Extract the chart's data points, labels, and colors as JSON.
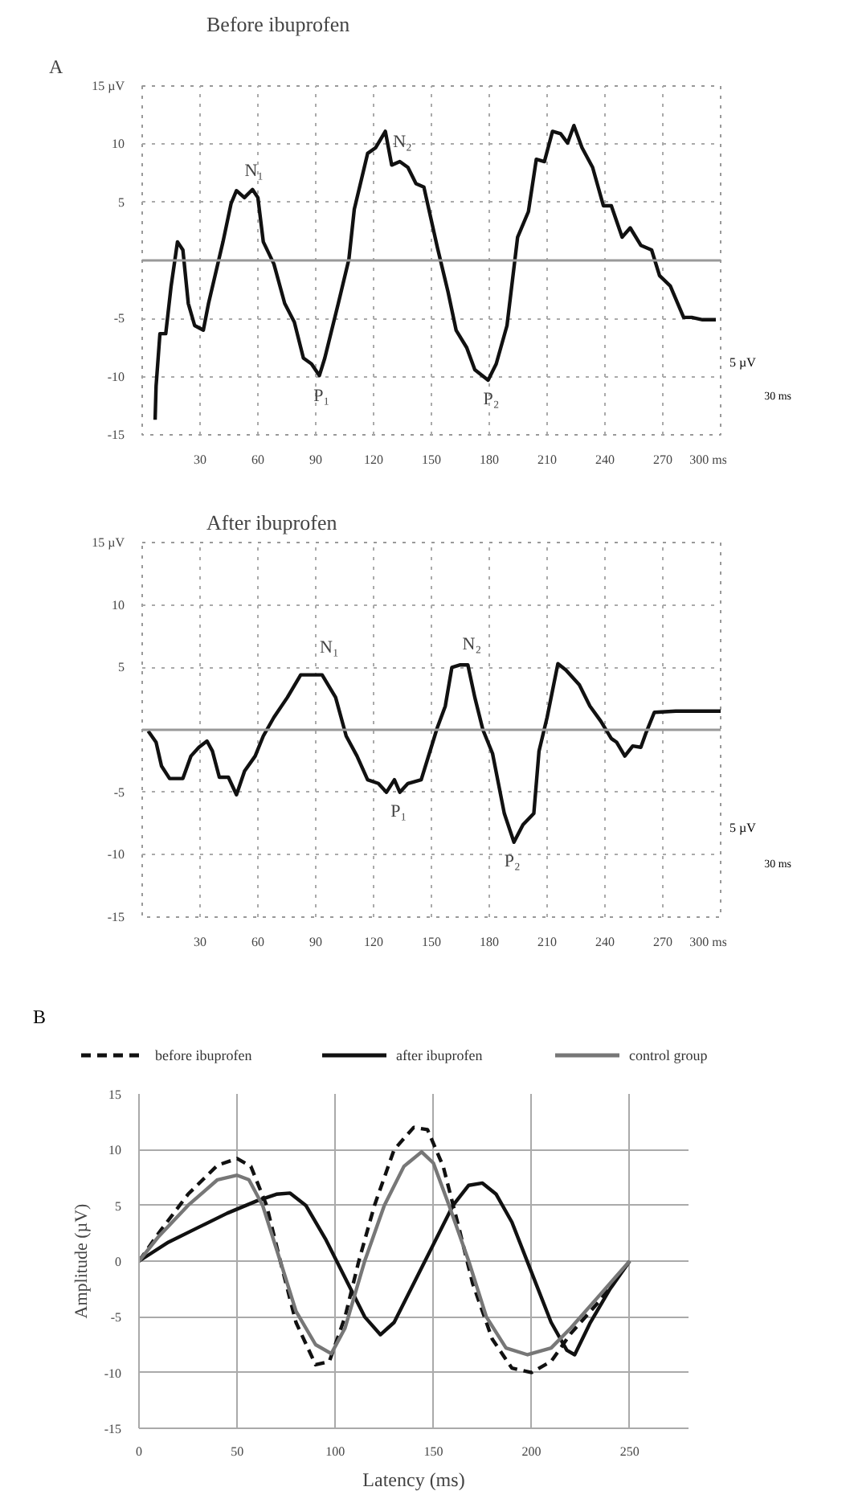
{
  "chart_data": [
    {
      "type": "line",
      "title": "Before ibuprofen",
      "xlim": [
        0,
        300
      ],
      "ylim": [
        -15,
        15
      ],
      "xticks": [
        30,
        60,
        90,
        120,
        150,
        180,
        210,
        240,
        270,
        {
          "value": 300,
          "label": "300 ms"
        }
      ],
      "yticks": [
        {
          "value": 15,
          "label": "15 µV"
        },
        10,
        5,
        -5,
        -10,
        -15
      ],
      "grid": true,
      "line_style": "solid",
      "marker": "none",
      "ref_lines": [
        {
          "axis": "y",
          "value": 0,
          "color": "#999999"
        }
      ],
      "annotations": [
        "A",
        {
          "text": "N₁",
          "x": 53,
          "y": 6
        },
        {
          "text": "N₂",
          "x": 130,
          "y": 8.5
        },
        {
          "text": "P₁",
          "x": 93,
          "y": -10
        },
        {
          "text": "P₂",
          "x": 181,
          "y": -10.3
        },
        "5 µV",
        "30 ms"
      ],
      "series": [
        {
          "color": "#111111",
          "x": [
            6.7,
            7.2,
            9.2,
            12.2,
            15,
            18.3,
            21.1,
            23.9,
            27.2,
            31.7,
            34.4,
            37.8,
            41.9,
            46.1,
            48.9,
            53,
            57.2,
            60,
            62.8,
            68.3,
            73.9,
            78.9,
            83.6,
            87.8,
            91.9,
            94.7,
            101.7,
            107.2,
            110,
            116.9,
            121.1,
            126.1,
            129.4,
            133.6,
            137.8,
            142,
            146.1,
            153.1,
            158.6,
            162.8,
            168.3,
            172.5,
            179.4,
            183.6,
            189.2,
            194.7,
            200.3,
            204.4,
            208.6,
            212.8,
            217,
            220.6,
            223.9,
            228.1,
            233.6,
            239.2,
            243.3,
            248.9,
            253.1,
            258.6,
            264.2,
            268.3,
            273.9,
            280.8,
            285,
            290.6,
            297.5
          ],
          "values": [
            -13.7,
            -10.8,
            -6.3,
            -6.3,
            -2.2,
            1.6,
            0.9,
            -3.7,
            -5.6,
            -6,
            -3.7,
            -1.3,
            1.6,
            4.9,
            6,
            5.4,
            6.1,
            5.4,
            1.6,
            -0.3,
            -3.7,
            -5.3,
            -8.4,
            -8.9,
            -9.9,
            -8.4,
            -3.7,
            0.1,
            4.4,
            9.2,
            9.7,
            11.1,
            8.2,
            8.5,
            8,
            6.6,
            6.3,
            1.1,
            -2.7,
            -6,
            -7.5,
            -9.4,
            -10.3,
            -8.9,
            -5.6,
            2,
            4.2,
            8.7,
            8.5,
            11.1,
            10.9,
            10.1,
            11.6,
            9.7,
            8,
            4.7,
            4.7,
            2,
            2.8,
            1.3,
            0.9,
            -1.3,
            -2.2,
            -4.9,
            -4.9,
            -5.1,
            -5.1
          ]
        }
      ]
    },
    {
      "type": "line",
      "title": "After ibuprofen",
      "xlim": [
        0,
        300
      ],
      "ylim": [
        -15,
        15
      ],
      "xticks": [
        30,
        60,
        90,
        120,
        150,
        180,
        210,
        240,
        270,
        {
          "value": 300,
          "label": "300 ms"
        }
      ],
      "yticks": [
        {
          "value": 15,
          "label": "15 µV"
        },
        10,
        5,
        -5,
        -10,
        -15
      ],
      "grid": true,
      "line_style": "solid",
      "marker": "none",
      "ref_lines": [
        {
          "axis": "y",
          "value": 0,
          "color": "#999999"
        }
      ],
      "annotations": [
        {
          "text": "N₁",
          "x": 92,
          "y": 5
        },
        {
          "text": "N₂",
          "x": 166,
          "y": 5.3
        },
        {
          "text": "P₁",
          "x": 133,
          "y": -5
        },
        {
          "text": "P₂",
          "x": 192,
          "y": -9
        },
        "5 µV",
        "30 ms"
      ],
      "series": [
        {
          "color": "#111111",
          "x": [
            3.1,
            7.2,
            10,
            14.2,
            21.1,
            25.3,
            29.4,
            33.6,
            36.4,
            40,
            44.7,
            48.9,
            53.1,
            58.6,
            62.8,
            68.3,
            75.3,
            82.2,
            87.8,
            93.3,
            100.3,
            105.8,
            111.4,
            116.9,
            122.5,
            126.7,
            130.8,
            133.6,
            137.8,
            144.7,
            148.9,
            153.1,
            157.2,
            160.6,
            165,
            168.9,
            172.5,
            176.7,
            181.7,
            187.8,
            192.8,
            197.5,
            203.1,
            205.8,
            210,
            215.6,
            219.7,
            226.7,
            232.2,
            237.8,
            243.3,
            246.1,
            250.3,
            254.4,
            258.6,
            261.4,
            265.6,
            276.7,
            287.8,
            300
          ],
          "values": [
            -0.1,
            -1,
            -2.9,
            -3.9,
            -3.9,
            -2.1,
            -1.4,
            -0.9,
            -1.7,
            -3.8,
            -3.8,
            -5.2,
            -3.3,
            -2.1,
            -0.5,
            1,
            2.6,
            4.4,
            4.4,
            4.4,
            2.6,
            -0.5,
            -2.1,
            -4,
            -4.3,
            -5,
            -4,
            -5,
            -4.3,
            -4,
            -1.9,
            0.2,
            1.9,
            5,
            5.2,
            5.2,
            2.6,
            0,
            -1.9,
            -6.7,
            -9,
            -7.6,
            -6.7,
            -1.7,
            1,
            5.3,
            4.8,
            3.6,
            1.9,
            0.7,
            -0.7,
            -1,
            -2.1,
            -1.3,
            -1.4,
            -0.2,
            1.4,
            1.5,
            1.5,
            1.5
          ]
        }
      ]
    },
    {
      "type": "line",
      "xlabel": "Latency (ms)",
      "ylabel": "Amplitude (µV)",
      "xlim": [
        0,
        280
      ],
      "ylim": [
        -15,
        15
      ],
      "xticks": [
        0,
        50,
        100,
        150,
        200,
        250
      ],
      "yticks": [
        -15,
        -10,
        -5,
        0,
        5,
        10,
        15
      ],
      "grid": true,
      "legend": "top",
      "marker": "none",
      "annotations": [
        "B"
      ],
      "series": [
        {
          "name": "before ibuprofen",
          "color": "#111111",
          "line_style": "dashed",
          "x": [
            0,
            10,
            25,
            40,
            50,
            57,
            65,
            72,
            80,
            90,
            97,
            105,
            112,
            120,
            130,
            140,
            147,
            155,
            163,
            170,
            180,
            190,
            200,
            210,
            220,
            235,
            250
          ],
          "values": [
            0,
            2.5,
            6,
            8.6,
            9.2,
            8.5,
            5,
            0,
            -5.5,
            -9.3,
            -9,
            -5,
            0,
            5,
            10,
            12,
            11.8,
            8.5,
            3,
            -2,
            -7,
            -9.6,
            -10,
            -9,
            -6.5,
            -3.5,
            0
          ]
        },
        {
          "name": "after ibuprofen",
          "color": "#111111",
          "line_style": "solid",
          "x": [
            0,
            15,
            30,
            45,
            60,
            70,
            77,
            85,
            95,
            105,
            115,
            123,
            130,
            140,
            150,
            160,
            168,
            175,
            182,
            190,
            200,
            210,
            218,
            222,
            230,
            240,
            250
          ],
          "values": [
            0,
            1.7,
            3,
            4.3,
            5.4,
            6,
            6.1,
            5,
            2,
            -1.5,
            -5,
            -6.6,
            -5.5,
            -2,
            1.5,
            5,
            6.8,
            7,
            6,
            3.5,
            -1,
            -5.5,
            -8,
            -8.4,
            -5.5,
            -2.5,
            0
          ]
        },
        {
          "name": "control group",
          "color": "#777777",
          "line_style": "solid",
          "x": [
            0,
            10,
            25,
            40,
            50,
            56,
            63,
            72,
            80,
            90,
            98,
            105,
            115,
            125,
            135,
            144,
            150,
            158,
            168,
            177,
            187,
            198,
            210,
            220,
            235,
            250
          ],
          "values": [
            0,
            2.2,
            5,
            7.3,
            7.7,
            7.3,
            5,
            0,
            -4.5,
            -7.5,
            -8.3,
            -6,
            0,
            5,
            8.5,
            9.8,
            8.8,
            5,
            0,
            -5,
            -7.8,
            -8.4,
            -7.8,
            -6,
            -3,
            0
          ]
        }
      ]
    }
  ]
}
